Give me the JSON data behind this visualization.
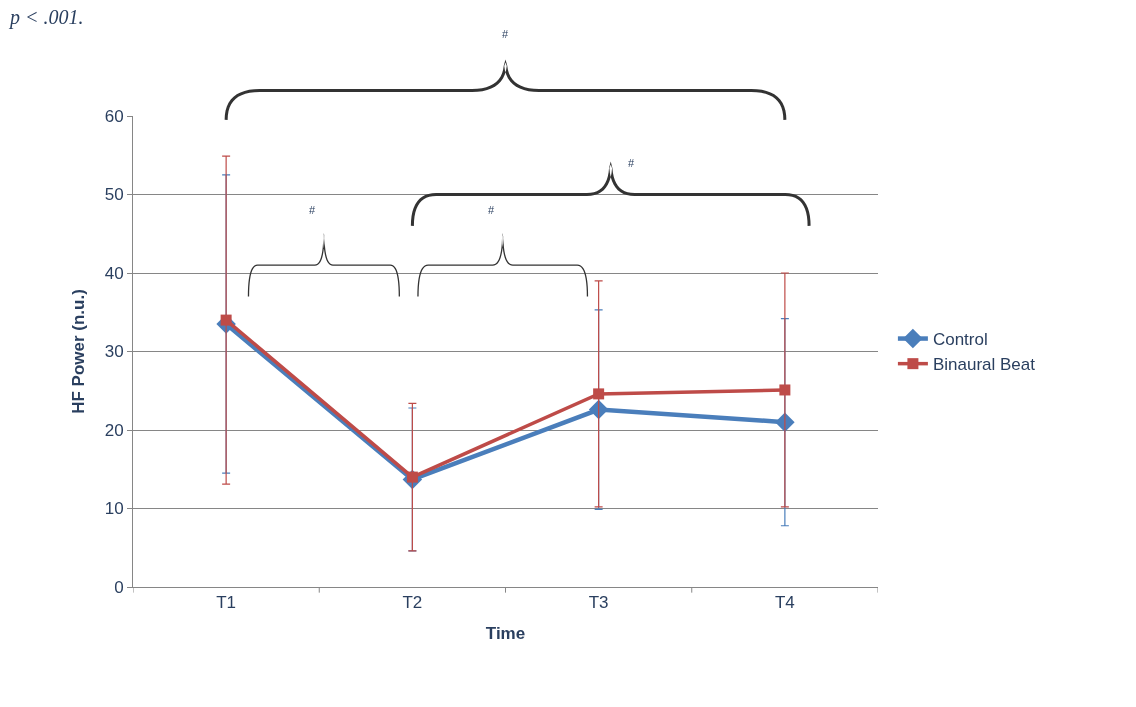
{
  "chart_data": {
    "type": "line",
    "xlabel": "Time",
    "ylabel": "HF Power (n.u.)",
    "categories": [
      "T1",
      "T2",
      "T3",
      "T4"
    ],
    "series": [
      {
        "name": "Control",
        "color": "#4a7ebb",
        "marker": "diamond",
        "values": [
          33.5,
          13.7,
          22.6,
          21.0
        ],
        "errors": [
          19.0,
          9.1,
          12.7,
          13.2
        ]
      },
      {
        "name": "Binaural Beat",
        "color": "#be4b48",
        "marker": "square",
        "values": [
          34.0,
          14.0,
          24.6,
          25.1
        ],
        "errors": [
          20.9,
          9.4,
          14.4,
          14.9
        ]
      }
    ],
    "ylim": [
      0,
      60
    ],
    "yticks": [
      0,
      10,
      20,
      30,
      40,
      50,
      60
    ],
    "grid": "y",
    "legend": "right",
    "annotations": [
      "p < .001.",
      "#",
      "#",
      "#",
      "#"
    ]
  }
}
